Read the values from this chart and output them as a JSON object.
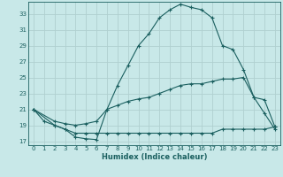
{
  "xlabel": "Humidex (Indice chaleur)",
  "bg_color": "#c8e8e8",
  "line_color": "#1a5f5f",
  "grid_color": "#b0d0d0",
  "xlim": [
    -0.5,
    23.5
  ],
  "ylim": [
    16.5,
    34.5
  ],
  "xticks": [
    0,
    1,
    2,
    3,
    4,
    5,
    6,
    7,
    8,
    9,
    10,
    11,
    12,
    13,
    14,
    15,
    16,
    17,
    18,
    19,
    20,
    21,
    22,
    23
  ],
  "yticks": [
    17,
    19,
    21,
    23,
    25,
    27,
    29,
    31,
    33
  ],
  "curve1_x": [
    0,
    1,
    2,
    3,
    4,
    5,
    6,
    7,
    8,
    9,
    10,
    11,
    12,
    13,
    14,
    15,
    16,
    17,
    18,
    19,
    20,
    21,
    22,
    23
  ],
  "curve1_y": [
    21,
    19.5,
    19,
    18.5,
    17.5,
    17.3,
    17.2,
    21.0,
    24.0,
    26.5,
    29.0,
    30.5,
    32.5,
    33.5,
    34.2,
    33.8,
    33.5,
    32.5,
    29.0,
    28.5,
    26.0,
    22.5,
    20.5,
    18.5
  ],
  "curve2_x": [
    0,
    2,
    3,
    4,
    5,
    6,
    7,
    8,
    9,
    10,
    11,
    12,
    13,
    14,
    15,
    16,
    17,
    18,
    19,
    20,
    21,
    22,
    23
  ],
  "curve2_y": [
    21,
    19.5,
    19.2,
    19.0,
    19.2,
    19.5,
    21.0,
    21.5,
    22.0,
    22.3,
    22.5,
    23.0,
    23.5,
    24.0,
    24.2,
    24.2,
    24.5,
    24.8,
    24.8,
    25.0,
    22.5,
    22.2,
    18.8
  ],
  "curve3_x": [
    0,
    2,
    3,
    4,
    5,
    6,
    7,
    8,
    9,
    10,
    11,
    12,
    13,
    14,
    15,
    16,
    17,
    18,
    19,
    20,
    21,
    22,
    23
  ],
  "curve3_y": [
    21,
    19.0,
    18.5,
    18.0,
    18.0,
    18.0,
    18.0,
    18.0,
    18.0,
    18.0,
    18.0,
    18.0,
    18.0,
    18.0,
    18.0,
    18.0,
    18.0,
    18.5,
    18.5,
    18.5,
    18.5,
    18.5,
    18.8
  ]
}
